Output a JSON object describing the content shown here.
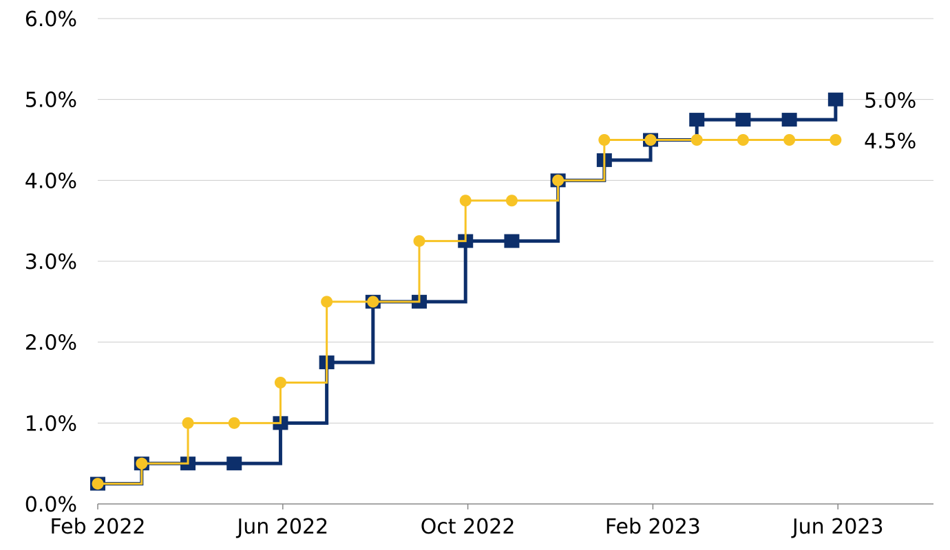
{
  "chart_data": {
    "type": "line",
    "title": "",
    "xlabel": "",
    "ylabel": "",
    "ylim": [
      0,
      6
    ],
    "grid": true,
    "y_ticks": [
      "0.0%",
      "1.0%",
      "2.0%",
      "3.0%",
      "4.0%",
      "5.0%",
      "6.0%"
    ],
    "y_tick_values": [
      0,
      1,
      2,
      3,
      4,
      5,
      6
    ],
    "x_ticks": [
      "Feb 2022",
      "Jun 2022",
      "Oct 2022",
      "Feb 2023",
      "Jun 2023"
    ],
    "x_tick_months": [
      0,
      4,
      8,
      12,
      16
    ],
    "x_range_months": [
      0,
      18
    ],
    "series": [
      {
        "name": "series-navy",
        "color": "#0d2f6b",
        "marker": "square",
        "step": "post",
        "x": [
          0,
          0.95,
          1.95,
          2.95,
          3.95,
          4.95,
          5.95,
          6.95,
          7.95,
          8.95,
          9.95,
          10.95,
          11.95,
          12.95,
          13.95,
          14.95,
          15.95
        ],
        "values": [
          0.25,
          0.5,
          0.5,
          0.5,
          1.0,
          1.75,
          2.5,
          2.5,
          3.25,
          3.25,
          4.0,
          4.25,
          4.5,
          4.75,
          4.75,
          4.75,
          5.0
        ],
        "end_label": "5.0%"
      },
      {
        "name": "series-gold",
        "color": "#f7c325",
        "marker": "circle",
        "step": "post",
        "x": [
          0,
          0.95,
          1.95,
          2.95,
          3.95,
          4.95,
          5.95,
          6.95,
          7.95,
          8.95,
          9.95,
          10.95,
          11.95,
          12.95,
          13.95,
          14.95,
          15.95
        ],
        "values": [
          0.25,
          0.5,
          1.0,
          1.0,
          1.5,
          2.5,
          2.5,
          3.25,
          3.75,
          3.75,
          4.0,
          4.5,
          4.5,
          4.5,
          4.5,
          4.5,
          4.5
        ],
        "end_label": "4.5%"
      }
    ]
  }
}
